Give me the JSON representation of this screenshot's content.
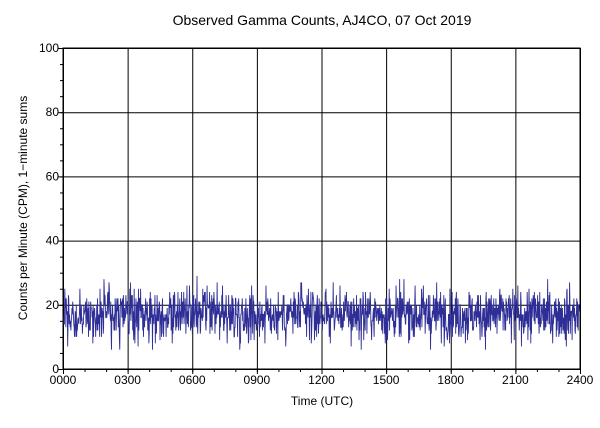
{
  "chart_data": {
    "type": "line",
    "title": "Observed Gamma Counts, AJ4CO, 07 Oct 2019",
    "xlabel": "Time (UTC)",
    "ylabel": "Counts per Minute (CPM), 1−minute sums",
    "xlim": [
      0,
      1440
    ],
    "ylim": [
      0,
      100
    ],
    "x_ticks": [
      {
        "value": 0,
        "label": "0000"
      },
      {
        "value": 180,
        "label": "0300"
      },
      {
        "value": 360,
        "label": "0600"
      },
      {
        "value": 540,
        "label": "0900"
      },
      {
        "value": 720,
        "label": "1200"
      },
      {
        "value": 900,
        "label": "1500"
      },
      {
        "value": 1080,
        "label": "1800"
      },
      {
        "value": 1260,
        "label": "2100"
      },
      {
        "value": 1440,
        "label": "2400"
      }
    ],
    "y_ticks": [
      {
        "value": 0,
        "label": "0"
      },
      {
        "value": 20,
        "label": "20"
      },
      {
        "value": 40,
        "label": "40"
      },
      {
        "value": 60,
        "label": "60"
      },
      {
        "value": 80,
        "label": "80"
      },
      {
        "value": 100,
        "label": "100"
      }
    ],
    "grid": true,
    "series": [
      {
        "color": "#2e2e96",
        "points_note": "1-minute sums, roughly 6-32 CPM, mean about 17",
        "mean": 17,
        "min": 6,
        "max": 32,
        "count": 1440
      }
    ]
  }
}
